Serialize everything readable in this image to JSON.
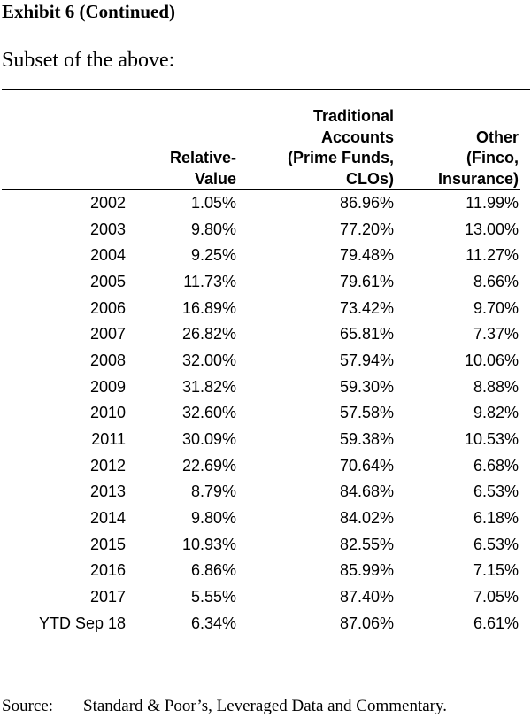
{
  "title": "Exhibit 6 (Continued)",
  "subtitle": "Subset of the above:",
  "table": {
    "headers": [
      "",
      "Relative-\nValue",
      "Traditional\nAccounts\n(Prime Funds,\nCLOs)",
      "Other\n(Finco,\nInsurance)"
    ],
    "rows": [
      [
        "2002",
        "1.05%",
        "86.96%",
        "11.99%"
      ],
      [
        "2003",
        "9.80%",
        "77.20%",
        "13.00%"
      ],
      [
        "2004",
        "9.25%",
        "79.48%",
        "11.27%"
      ],
      [
        "2005",
        "11.73%",
        "79.61%",
        "8.66%"
      ],
      [
        "2006",
        "16.89%",
        "73.42%",
        "9.70%"
      ],
      [
        "2007",
        "26.82%",
        "65.81%",
        "7.37%"
      ],
      [
        "2008",
        "32.00%",
        "57.94%",
        "10.06%"
      ],
      [
        "2009",
        "31.82%",
        "59.30%",
        "8.88%"
      ],
      [
        "2010",
        "32.60%",
        "57.58%",
        "9.82%"
      ],
      [
        "2011",
        "30.09%",
        "59.38%",
        "10.53%"
      ],
      [
        "2012",
        "22.69%",
        "70.64%",
        "6.68%"
      ],
      [
        "2013",
        "8.79%",
        "84.68%",
        "6.53%"
      ],
      [
        "2014",
        "9.80%",
        "84.02%",
        "6.18%"
      ],
      [
        "2015",
        "10.93%",
        "82.55%",
        "6.53%"
      ],
      [
        "2016",
        "6.86%",
        "85.99%",
        "7.15%"
      ],
      [
        "2017",
        "5.55%",
        "87.40%",
        "7.05%"
      ],
      [
        "YTD Sep 18",
        "6.34%",
        "87.06%",
        "6.61%"
      ]
    ]
  },
  "source": {
    "label": "Source:",
    "text": "Standard & Poor’s, Leveraged Data and Commentary."
  }
}
